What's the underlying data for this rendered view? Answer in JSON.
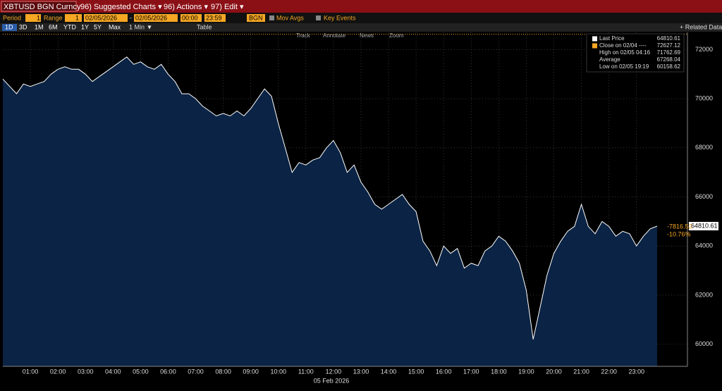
{
  "toolbar": {
    "ticker": "XBTUSD BGN Curncy",
    "menus": [
      "96) Suggested Charts ▾",
      "96) Actions ▾",
      "97) Edit ▾"
    ],
    "period_label": "Period",
    "period": "1",
    "range_label": "Range",
    "range": "1",
    "start_date": "02/05/2026",
    "dash": "-",
    "end_date": "02/05/2026",
    "start_time": "00:00",
    "end_time": "23:59",
    "source": "BGN",
    "mov_avgs": "Mov Avgs",
    "key_events": "Key Events",
    "periods": [
      "1D",
      "3D",
      "1M",
      "6M",
      "YTD",
      "1Y",
      "5Y",
      "Max"
    ],
    "interval": "1 Min ▼",
    "table": "Table",
    "related": "+ Related Data",
    "tools": [
      "Track",
      "Annotate",
      "News",
      "Zoom"
    ]
  },
  "chart_data": {
    "type": "area",
    "color": "#ffffff",
    "fill": "#0b2344",
    "grid": true,
    "x_label": "05 Feb 2026",
    "x": [
      0,
      0.25,
      0.5,
      0.75,
      1,
      1.25,
      1.5,
      1.75,
      2,
      2.25,
      2.5,
      2.75,
      3,
      3.25,
      3.5,
      3.75,
      4,
      4.25,
      4.5,
      4.75,
      5,
      5.25,
      5.5,
      5.75,
      6,
      6.25,
      6.5,
      6.75,
      7,
      7.25,
      7.5,
      7.75,
      8,
      8.25,
      8.5,
      8.75,
      9,
      9.25,
      9.5,
      9.75,
      10,
      10.25,
      10.5,
      10.75,
      11,
      11.25,
      11.5,
      11.75,
      12,
      12.25,
      12.5,
      12.75,
      13,
      13.25,
      13.5,
      13.75,
      14,
      14.25,
      14.5,
      14.75,
      15,
      15.25,
      15.5,
      15.75,
      16,
      16.25,
      16.5,
      16.75,
      17,
      17.25,
      17.5,
      17.75,
      18,
      18.25,
      18.5,
      18.75,
      19,
      19.25,
      19.5,
      19.75,
      20,
      20.25,
      20.5,
      20.75,
      21,
      21.25,
      21.5,
      21.75,
      22,
      22.25,
      22.5,
      22.75,
      23,
      23.25,
      23.5,
      23.75
    ],
    "values": [
      70800,
      70500,
      70200,
      70600,
      70500,
      70600,
      70700,
      71000,
      71200,
      71300,
      71200,
      71200,
      71000,
      70700,
      70900,
      71100,
      71300,
      71500,
      71700,
      71400,
      71500,
      71300,
      71200,
      71400,
      71000,
      70700,
      70200,
      70200,
      70000,
      69700,
      69500,
      69300,
      69400,
      69300,
      69500,
      69300,
      69600,
      70000,
      70400,
      70100,
      69000,
      68000,
      67000,
      67400,
      67300,
      67500,
      67600,
      68000,
      68300,
      67800,
      67000,
      67300,
      66600,
      66200,
      65700,
      65500,
      65700,
      65900,
      66100,
      65700,
      65400,
      64200,
      63800,
      63200,
      64000,
      63700,
      63900,
      63100,
      63300,
      63200,
      63800,
      64000,
      64400,
      64200,
      63800,
      63300,
      62200,
      60200,
      61500,
      62800,
      63700,
      64200,
      64600,
      64800,
      65700,
      64800,
      64500,
      65000,
      64800,
      64400,
      64600,
      64500,
      64000,
      64400,
      64700,
      64810.61
    ],
    "xlim": [
      0,
      24.85
    ],
    "ylim": [
      59100,
      72700
    ],
    "xticks": [
      {
        "value": 1,
        "label": "01:00"
      },
      {
        "value": 2,
        "label": "02:00"
      },
      {
        "value": 3,
        "label": "03:00"
      },
      {
        "value": 4,
        "label": "04:00"
      },
      {
        "value": 5,
        "label": "05:00"
      },
      {
        "value": 6,
        "label": "06:00"
      },
      {
        "value": 7,
        "label": "07:00"
      },
      {
        "value": 8,
        "label": "08:00"
      },
      {
        "value": 9,
        "label": "09:00"
      },
      {
        "value": 10,
        "label": "10:00"
      },
      {
        "value": 11,
        "label": "11:00"
      },
      {
        "value": 12,
        "label": "12:00"
      },
      {
        "value": 13,
        "label": "13:00"
      },
      {
        "value": 14,
        "label": "14:00"
      },
      {
        "value": 15,
        "label": "15:00"
      },
      {
        "value": 16,
        "label": "16:00"
      },
      {
        "value": 17,
        "label": "17:00"
      },
      {
        "value": 18,
        "label": "18:00"
      },
      {
        "value": 19,
        "label": "19:00"
      },
      {
        "value": 20,
        "label": "20:00"
      },
      {
        "value": 21,
        "label": "21:00"
      },
      {
        "value": 22,
        "label": "22:00"
      },
      {
        "value": 23,
        "label": "23:00"
      }
    ],
    "yticks": [
      60000,
      62000,
      64000,
      66000,
      68000,
      70000,
      72000
    ],
    "legend": {
      "last_label": "Last Price",
      "last": 64810.61,
      "close_label": "Close on 02/04 ----",
      "close": 72627.12,
      "high_label": "High on 02/05 04:16",
      "high": 71762.69,
      "avg_label": "Average",
      "avg": 67268.04,
      "low_label": "Low on 02/05 19:19",
      "low": 60158.62
    },
    "change": "-7816.52",
    "change_pct": "-10.76%"
  }
}
